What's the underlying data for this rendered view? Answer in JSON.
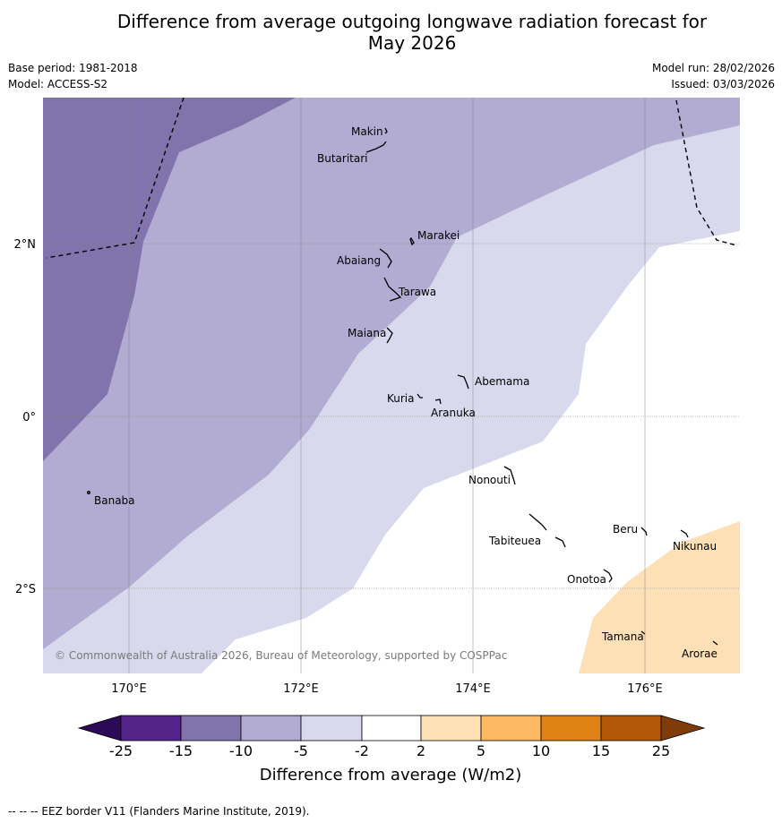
{
  "title_line1": "Difference from average outgoing longwave radiation forecast for",
  "title_line2": "May 2026",
  "base_period": "Base period: 1981-2018",
  "model": "Model: ACCESS-S2",
  "model_run": "Model run: 28/02/2026",
  "issued": "Issued: 03/03/2026",
  "axes": {
    "lon_ticks": [
      "170°E",
      "172°E",
      "174°E",
      "176°E"
    ],
    "lat_ticks": [
      "2°N",
      "0°",
      "2°S"
    ]
  },
  "islands": {
    "makin": "Makin",
    "butaritari": "Butaritari",
    "marakei": "Marakei",
    "abaiang": "Abaiang",
    "tarawa": "Tarawa",
    "maiana": "Maiana",
    "abemama": "Abemama",
    "kuria": "Kuria",
    "aranuka": "Aranuka",
    "banaba": "Banaba",
    "nonouti": "Nonouti",
    "beru": "Beru",
    "nikunau": "Nikunau",
    "tabiteuea": "Tabiteuea",
    "onotoa": "Onotoa",
    "tamana": "Tamana",
    "arorae": "Arorae"
  },
  "copyright": "© Commonwealth of Australia 2026, Bureau of Meteorology, supported by COSPPac",
  "colorbar": {
    "title": "Difference from average (W/m2)",
    "ticks": [
      "-25",
      "-15",
      "-10",
      "-5",
      "-2",
      "2",
      "5",
      "10",
      "15",
      "25"
    ],
    "colors": {
      "lt_neg25": "#2d0a57",
      "neg25_neg15": "#55248b",
      "neg15_neg10": "#8173ac",
      "neg10_neg5": "#b2abd2",
      "neg5_neg2": "#d8d9ec",
      "neg2_2": "#ffffff",
      "p2_5": "#fee0b6",
      "p5_10": "#fdb863",
      "p10_15": "#e08214",
      "p15_25": "#b35806",
      "gt25": "#7f3b08"
    }
  },
  "footer": "--  --  -- EEZ border V11 (Flanders Marine Institute, 2019)."
}
